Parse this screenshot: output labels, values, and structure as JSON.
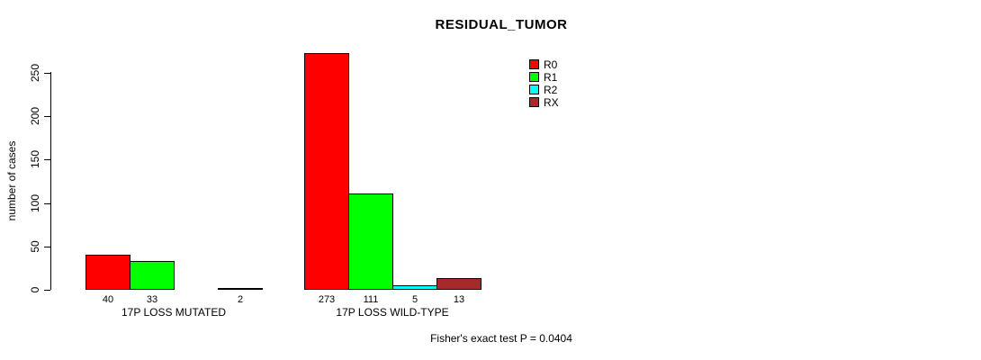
{
  "chart_data": {
    "type": "bar",
    "title": "RESIDUAL_TUMOR",
    "ylabel": "number of cases",
    "xlabel": "",
    "ylim": [
      0,
      273
    ],
    "yticks": [
      0,
      50,
      100,
      150,
      200,
      250
    ],
    "grid": false,
    "legend_position": "top-right",
    "categories": [
      "17P LOSS MUTATED",
      "17P LOSS WILD-TYPE"
    ],
    "series": [
      {
        "name": "R0",
        "color": "#ff0000",
        "values": [
          40,
          273
        ]
      },
      {
        "name": "R1",
        "color": "#00ff00",
        "values": [
          33,
          111
        ]
      },
      {
        "name": "R2",
        "color": "#00ffff",
        "values": [
          0,
          5
        ]
      },
      {
        "name": "RX",
        "color": "#a52a2a",
        "values": [
          2,
          13
        ]
      }
    ],
    "bar_value_labels": [
      [
        "40",
        "33",
        "",
        "2"
      ],
      [
        "273",
        "111",
        "5",
        "13"
      ]
    ],
    "annotation": "Fisher's exact test P = 0.0404"
  }
}
